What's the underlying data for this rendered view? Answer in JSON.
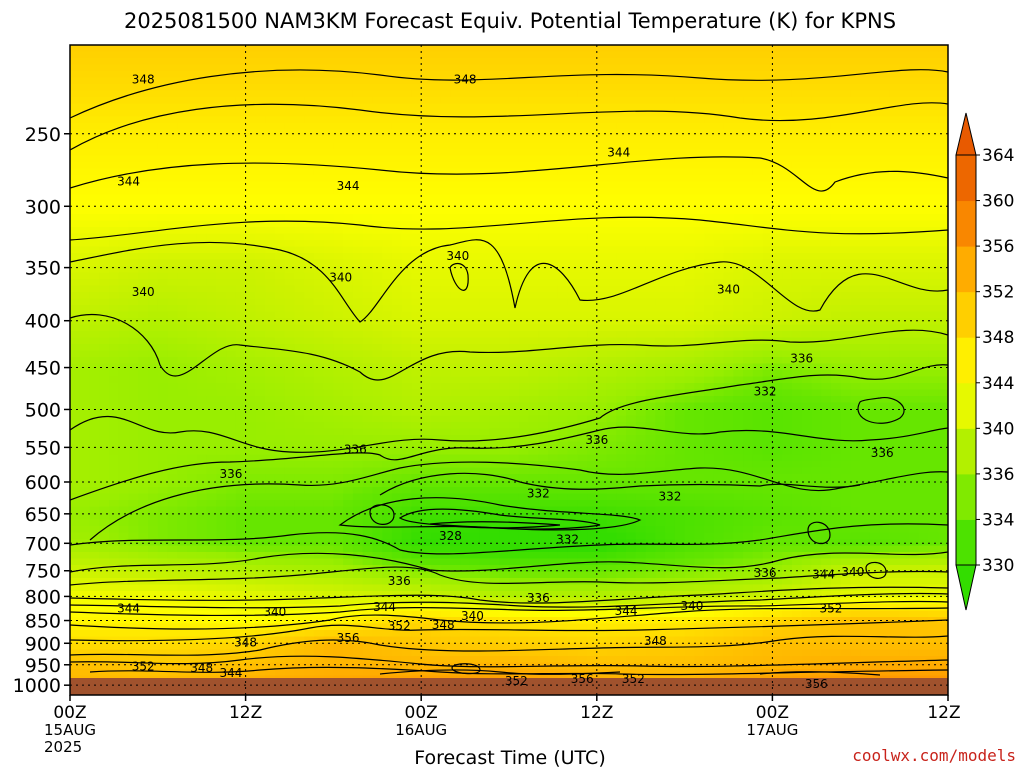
{
  "chart_data": {
    "type": "heatmap",
    "title": "2025081500 NAM3KM Forecast Equiv. Potential Temperature (K) for KPNS",
    "xlabel": "Forecast Time (UTC)",
    "ylabel": "",
    "credit": "coolwx.com/models",
    "x_ticks": [
      {
        "hour": 0,
        "lines": [
          "00Z",
          "15AUG",
          "2025"
        ]
      },
      {
        "hour": 12,
        "lines": [
          "12Z"
        ]
      },
      {
        "hour": 24,
        "lines": [
          "00Z",
          "16AUG"
        ]
      },
      {
        "hour": 36,
        "lines": [
          "12Z"
        ]
      },
      {
        "hour": 48,
        "lines": [
          "00Z",
          "17AUG"
        ]
      },
      {
        "hour": 60,
        "lines": [
          "12Z"
        ]
      }
    ],
    "xlim": [
      0,
      60
    ],
    "y_ticks": [
      250,
      300,
      350,
      400,
      450,
      500,
      550,
      600,
      650,
      700,
      750,
      800,
      850,
      900,
      950,
      1000
    ],
    "ylim": [
      200,
      1025
    ],
    "y_scale": "log",
    "grid": true,
    "colorbar": {
      "labels": [
        330,
        334,
        336,
        340,
        344,
        348,
        352,
        356,
        360,
        364
      ],
      "colors": [
        "#33dd00",
        "#66e600",
        "#99ee00",
        "#ccf200",
        "#ffff00",
        "#ffde00",
        "#ffbf00",
        "#ff9900",
        "#f27400",
        "#e85a00"
      ]
    },
    "levels": [
      200,
      250,
      300,
      350,
      400,
      450,
      500,
      550,
      600,
      650,
      700,
      750,
      800,
      850,
      900,
      950,
      1000
    ],
    "hours": [
      0,
      6,
      12,
      18,
      24,
      30,
      36,
      42,
      48,
      54,
      60
    ],
    "values": [
      [
        350,
        350,
        350,
        350,
        350,
        350,
        350,
        350,
        350,
        350,
        350
      ],
      [
        346,
        346,
        346,
        346,
        346,
        346,
        346,
        346,
        346,
        346,
        346
      ],
      [
        344,
        344,
        344,
        344,
        344,
        344,
        344,
        344,
        344,
        344,
        344
      ],
      [
        341,
        340,
        340,
        341,
        342,
        342,
        342,
        342,
        341,
        341,
        341
      ],
      [
        339,
        338,
        339,
        340,
        341,
        341,
        341,
        341,
        340,
        339,
        339
      ],
      [
        337,
        336,
        337,
        338,
        339,
        339,
        338,
        337,
        335,
        336,
        336
      ],
      [
        337,
        336,
        336,
        337,
        338,
        337,
        336,
        334,
        333,
        334,
        334
      ],
      [
        337,
        336,
        336,
        336,
        336,
        336,
        335,
        334,
        333,
        334,
        334
      ],
      [
        337,
        336,
        335,
        335,
        334,
        334,
        334,
        334,
        334,
        334,
        334
      ],
      [
        336,
        335,
        334,
        334,
        331,
        331,
        331,
        332,
        333,
        334,
        334
      ],
      [
        337,
        335,
        334,
        334,
        330,
        329,
        329,
        332,
        334,
        333,
        334
      ],
      [
        340,
        339,
        338,
        337,
        335,
        334,
        334,
        335,
        336,
        340,
        340
      ],
      [
        343,
        343,
        342,
        341,
        340,
        338,
        338,
        339,
        340,
        342,
        342
      ],
      [
        345,
        345,
        344,
        345,
        349,
        347,
        346,
        346,
        349,
        352,
        351
      ],
      [
        348,
        348,
        349,
        353,
        351,
        350,
        349,
        350,
        352,
        352,
        352
      ],
      [
        352,
        351,
        352,
        353,
        353,
        353,
        352,
        352,
        353,
        354,
        354
      ],
      [
        353,
        353,
        354,
        355,
        356,
        356,
        354,
        353,
        356,
        357,
        357
      ]
    ],
    "contour_labels": [
      {
        "text": "348",
        "hour": 5,
        "p": 218
      },
      {
        "text": "348",
        "hour": 27,
        "p": 218
      },
      {
        "text": "344",
        "hour": 37.5,
        "p": 262
      },
      {
        "text": "344",
        "hour": 4,
        "p": 282
      },
      {
        "text": "344",
        "hour": 19,
        "p": 285
      },
      {
        "text": "340",
        "hour": 26.5,
        "p": 340
      },
      {
        "text": "340",
        "hour": 18.5,
        "p": 359
      },
      {
        "text": "340",
        "hour": 5,
        "p": 372
      },
      {
        "text": "340",
        "hour": 45,
        "p": 370
      },
      {
        "text": "336",
        "hour": 50,
        "p": 440
      },
      {
        "text": "332",
        "hour": 47.5,
        "p": 478
      },
      {
        "text": "336",
        "hour": 36,
        "p": 540
      },
      {
        "text": "336",
        "hour": 19.5,
        "p": 553
      },
      {
        "text": "336",
        "hour": 55.5,
        "p": 558
      },
      {
        "text": "336",
        "hour": 11,
        "p": 588
      },
      {
        "text": "332",
        "hour": 32,
        "p": 618
      },
      {
        "text": "332",
        "hour": 41,
        "p": 622
      },
      {
        "text": "328",
        "hour": 26,
        "p": 687
      },
      {
        "text": "332",
        "hour": 34,
        "p": 693
      },
      {
        "text": "336",
        "hour": 47.5,
        "p": 754
      },
      {
        "text": "344",
        "hour": 51.5,
        "p": 757
      },
      {
        "text": "340",
        "hour": 53.5,
        "p": 752
      },
      {
        "text": "336",
        "hour": 22.5,
        "p": 770
      },
      {
        "text": "336",
        "hour": 32,
        "p": 803
      },
      {
        "text": "344",
        "hour": 4,
        "p": 825
      },
      {
        "text": "340",
        "hour": 14,
        "p": 832
      },
      {
        "text": "344",
        "hour": 21.5,
        "p": 822
      },
      {
        "text": "344",
        "hour": 38,
        "p": 830
      },
      {
        "text": "340",
        "hour": 42.5,
        "p": 820
      },
      {
        "text": "340",
        "hour": 27.5,
        "p": 840
      },
      {
        "text": "352",
        "hour": 52,
        "p": 825
      },
      {
        "text": "352",
        "hour": 22.5,
        "p": 862
      },
      {
        "text": "348",
        "hour": 25.5,
        "p": 860
      },
      {
        "text": "356",
        "hour": 19,
        "p": 888
      },
      {
        "text": "348",
        "hour": 12,
        "p": 898
      },
      {
        "text": "348",
        "hour": 40,
        "p": 895
      },
      {
        "text": "352",
        "hour": 5,
        "p": 954
      },
      {
        "text": "348",
        "hour": 9,
        "p": 958
      },
      {
        "text": "344",
        "hour": 11,
        "p": 970
      },
      {
        "text": "352",
        "hour": 30.5,
        "p": 989
      },
      {
        "text": "356",
        "hour": 35,
        "p": 985
      },
      {
        "text": "352",
        "hour": 38.5,
        "p": 985
      },
      {
        "text": "356",
        "hour": 51,
        "p": 997
      }
    ]
  }
}
